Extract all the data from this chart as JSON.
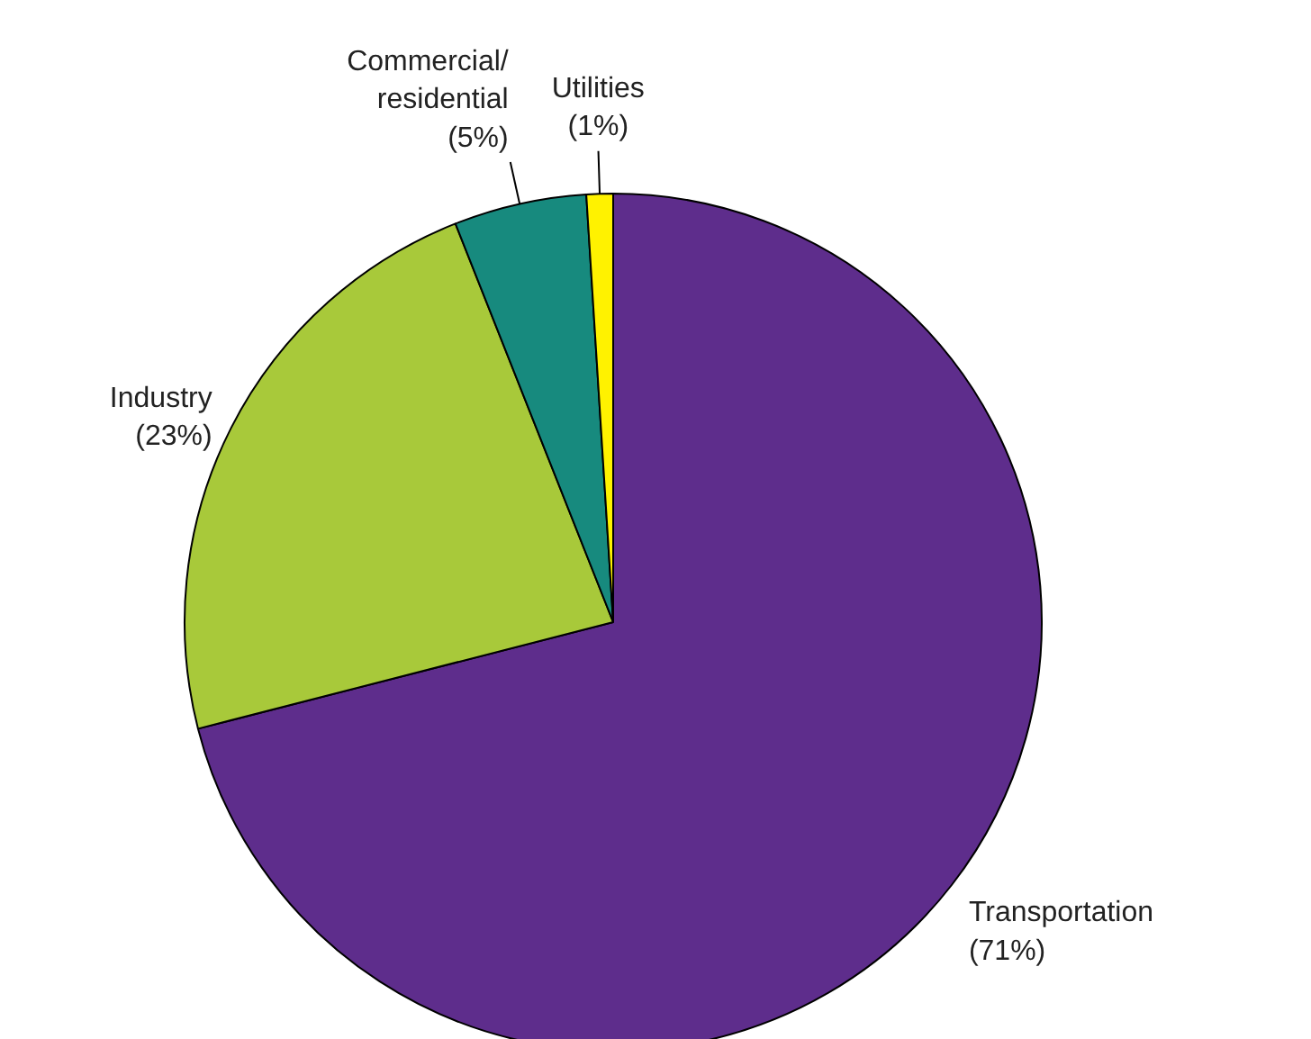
{
  "chart_data": {
    "type": "pie",
    "categories": [
      "Transportation",
      "Industry",
      "Commercial/residential",
      "Utilities"
    ],
    "values": [
      71,
      23,
      5,
      1
    ],
    "colors": [
      "#5e2d8c",
      "#a8c93a",
      "#178a7e",
      "#fff200"
    ],
    "value_labels": [
      "(71%)",
      "(23%)",
      "(5%)",
      "(1%)"
    ]
  }
}
